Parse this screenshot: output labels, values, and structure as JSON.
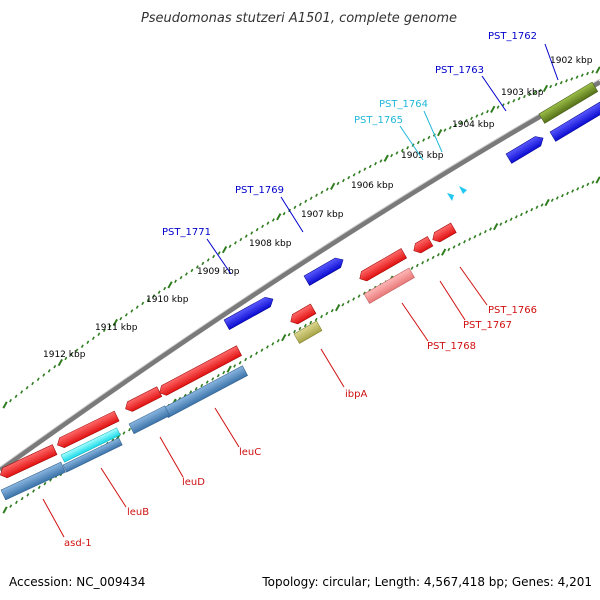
{
  "title": "Pseudomonas stutzeri A1501, complete genome",
  "footer": {
    "accession": "Accession: NC_009434",
    "topology": "Topology: circular; Length: 4,567,418 bp; Genes: 4,201"
  },
  "scale_labels": [
    "1902 kbp",
    "1903 kbp",
    "1904 kbp",
    "1905 kbp",
    "1906 kbp",
    "1907 kbp",
    "1908 kbp",
    "1909 kbp",
    "1910 kbp",
    "1911 kbp",
    "1912 kbp"
  ],
  "gene_labels": {
    "PST_1762": "PST_1762",
    "PST_1763": "PST_1763",
    "PST_1764": "PST_1764",
    "PST_1765": "PST_1765",
    "PST_1769": "PST_1769",
    "PST_1771": "PST_1771",
    "PST_1766": "PST_1766",
    "PST_1767": "PST_1767",
    "PST_1768": "PST_1768",
    "ibpA": "ibpA",
    "leuC": "leuC",
    "leuD": "leuD",
    "leuB": "leuB",
    "asd_1": "asd-1"
  },
  "colors": {
    "backbone": "#7a7a7a",
    "tick": "#2f7d1f",
    "blue_gene": "#1010e0",
    "red_gene": "#ee1a1a",
    "steel_gene": "#4a82b8",
    "cyan_gene": "#22e8f0",
    "olive_gene": "#6a8a22",
    "khaki_gene": "#b8b45a",
    "pink_gene": "#f08a8a",
    "label_blue": "#0000cc",
    "label_cyan": "#22b8d8",
    "label_red": "#d01010"
  }
}
